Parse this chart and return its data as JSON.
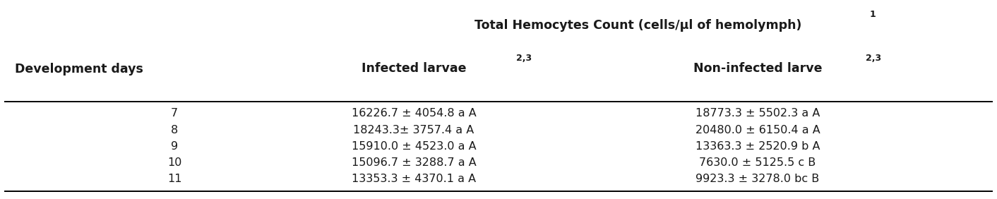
{
  "title_main": "Total Hemocytes Count (cells/μl of hemolymph)",
  "title_sup": "1",
  "col0_header": "Development days",
  "col1_header": "Infected larvae",
  "col1_sup": "2,3",
  "col2_header": "Non-infected larve",
  "col2_sup": "2,3",
  "rows": [
    [
      "7",
      "16226.7 ± 4054.8 a A",
      "18773.3 ± 5502.3 a A"
    ],
    [
      "8",
      "18243.3± 3757.4 a A",
      "20480.0 ± 6150.4 a A"
    ],
    [
      "9",
      "15910.0 ± 4523.0 a A",
      "13363.3 ± 2520.9 b A"
    ],
    [
      "10",
      "15096.7 ± 3288.7 a A",
      "7630.0 ± 5125.5 c B"
    ],
    [
      "11",
      "13353.3 ± 4370.1 a A",
      "9923.3 ± 3278.0 bc B"
    ]
  ],
  "bg_color": "#ffffff",
  "text_color": "#1a1a1a",
  "title_fontsize": 12.5,
  "header_fontsize": 12.5,
  "body_fontsize": 11.5,
  "sup_fontsize": 9.0
}
